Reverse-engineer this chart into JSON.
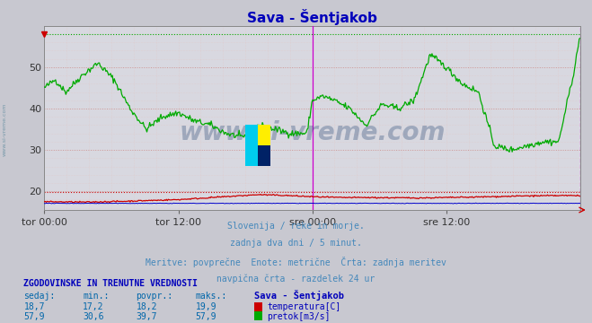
{
  "title": "Sava - Šentjakob",
  "title_color": "#0000bb",
  "bg_color": "#c8c8d0",
  "plot_bg_color": "#d8d8e0",
  "temp_color": "#cc0000",
  "flow_color": "#00aa00",
  "height_color": "#0000cc",
  "ylim": [
    15.5,
    60
  ],
  "yticks": [
    20,
    30,
    40,
    50
  ],
  "temp_min": 17.2,
  "temp_max": 19.9,
  "temp_avg": 18.2,
  "temp_current": 18.7,
  "flow_min": 30.6,
  "flow_max": 57.9,
  "flow_avg": 39.7,
  "flow_current": 57.9,
  "subtitle_lines": [
    "Slovenija / reke in morje.",
    "zadnja dva dni / 5 minut.",
    "Meritve: povprečne  Enote: metrične  Črta: zadnja meritev",
    "navpična črta - razdelek 24 ur"
  ],
  "subtitle_color": "#4488bb",
  "table_header_color": "#0000bb",
  "table_label_color": "#0066aa",
  "watermark_color": "#1a3a6a",
  "watermark_text": "www.si-vreme.com",
  "left_label_color": "#7799aa",
  "left_label_text": "www.si-vreme.com",
  "xtick_labels": [
    "tor 00:00",
    "tor 12:00",
    "sre 00:00",
    "sre 12:00"
  ],
  "xtick_pos": [
    0.0,
    0.25,
    0.5,
    0.75
  ],
  "magenta_vline": "#cc00cc",
  "border_color": "#888888"
}
